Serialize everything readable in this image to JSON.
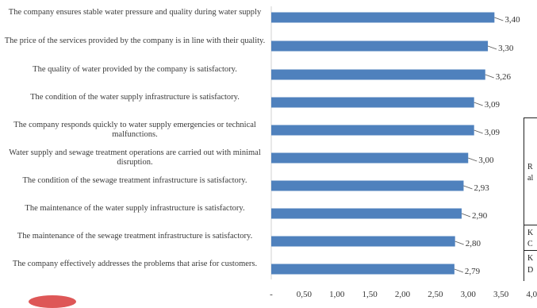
{
  "chart_data": {
    "type": "bar",
    "orientation": "horizontal",
    "categories": [
      "The company ensures stable water pressure and quality during water supply",
      "The price of the services provided by the company is in line with their quality.",
      "The quality of water provided by the company is satisfactory.",
      "The condition of the water supply infrastructure is satisfactory.",
      "The company responds quickly to water supply emergencies or technical malfunctions.",
      "Water supply and sewage treatment operations are carried out with minimal disruption.",
      "The condition of the sewage treatment infrastructure is satisfactory.",
      "The maintenance of the water supply infrastructure is satisfactory.",
      "The maintenance of the sewage treatment infrastructure is satisfactory.",
      "The company effectively addresses the problems that arise for customers."
    ],
    "values": [
      3.4,
      3.3,
      3.26,
      3.09,
      3.09,
      3.0,
      2.93,
      2.9,
      2.8,
      2.79
    ],
    "data_labels": [
      "3,40",
      "3,30",
      "3,26",
      "3,09",
      "3,09",
      "3,00",
      "2,93",
      "2,90",
      "2,80",
      "2,79"
    ],
    "x_ticks": [
      "-",
      "0,50",
      "1,00",
      "1,50",
      "2,00",
      "2,50",
      "3,00",
      "3,50",
      "4,00"
    ],
    "xlim": [
      0,
      4
    ],
    "bar_color": "#4f81bd",
    "grid": false,
    "legend": "none"
  },
  "table_fragment": {
    "texts": [
      "R",
      "al",
      "K",
      "C",
      "K",
      "D"
    ]
  }
}
